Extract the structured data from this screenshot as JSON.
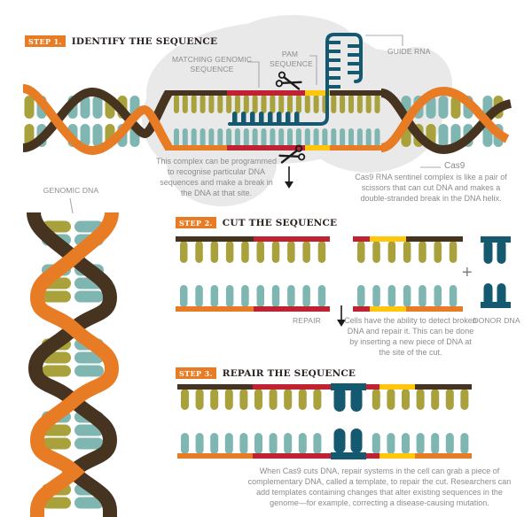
{
  "palette": {
    "orange": "#E87C25",
    "brown": "#463420",
    "olive": "#A8A13C",
    "teal": "#80B6B2",
    "blue": "#14596F",
    "red": "#BE2233",
    "yellow": "#FFC60B",
    "cloud": "#E9E9EA",
    "white": "#FFFFFF",
    "text_gray": "#8A8C8E",
    "text_dark": "#2B2320",
    "line_gray": "#A9ABAD",
    "plus_gray": "#808184",
    "scissors": "#1B1B1B"
  },
  "steps": [
    {
      "badge": "STEP 1.",
      "title": "IDENTIFY THE SEQUENCE"
    },
    {
      "badge": "STEP 2.",
      "title": "CUT THE SEQUENCE"
    },
    {
      "badge": "STEP 3.",
      "title": "REPAIR THE SEQUENCE"
    }
  ],
  "labels": {
    "matching_genomic": "MATCHING GENOMIC SEQUENCE",
    "pam": "PAM SEQUENCE",
    "guide_rna": "GUIDE RNA",
    "cas9": "Cas9",
    "genomic_dna": "GENOMIC DNA",
    "repair": "REPAIR",
    "donor_dna": "DONOR DNA",
    "plus": "+"
  },
  "captions": {
    "step1_complex": "This complex can be programmed to recognise particular DNA sequences and make a break in the DNA at that site.",
    "cas9": "Cas9 RNA sentinel complex is like a pair of scissors that can cut DNA and makes a double-stranded break in the DNA helix.",
    "step2_cells": "Cells have the ability to detect broken DNA and repair it. This can be done by inserting a new piece of DNA at the site of the cut.",
    "step3_repair": "When Cas9 cuts DNA, repair systems in the cell can grab a piece of complementary DNA, called a template, to repair the cut. Researchers can add templates containing changes that alter existing sequences in the genome—for example, correcting a disease-causing mutation."
  }
}
